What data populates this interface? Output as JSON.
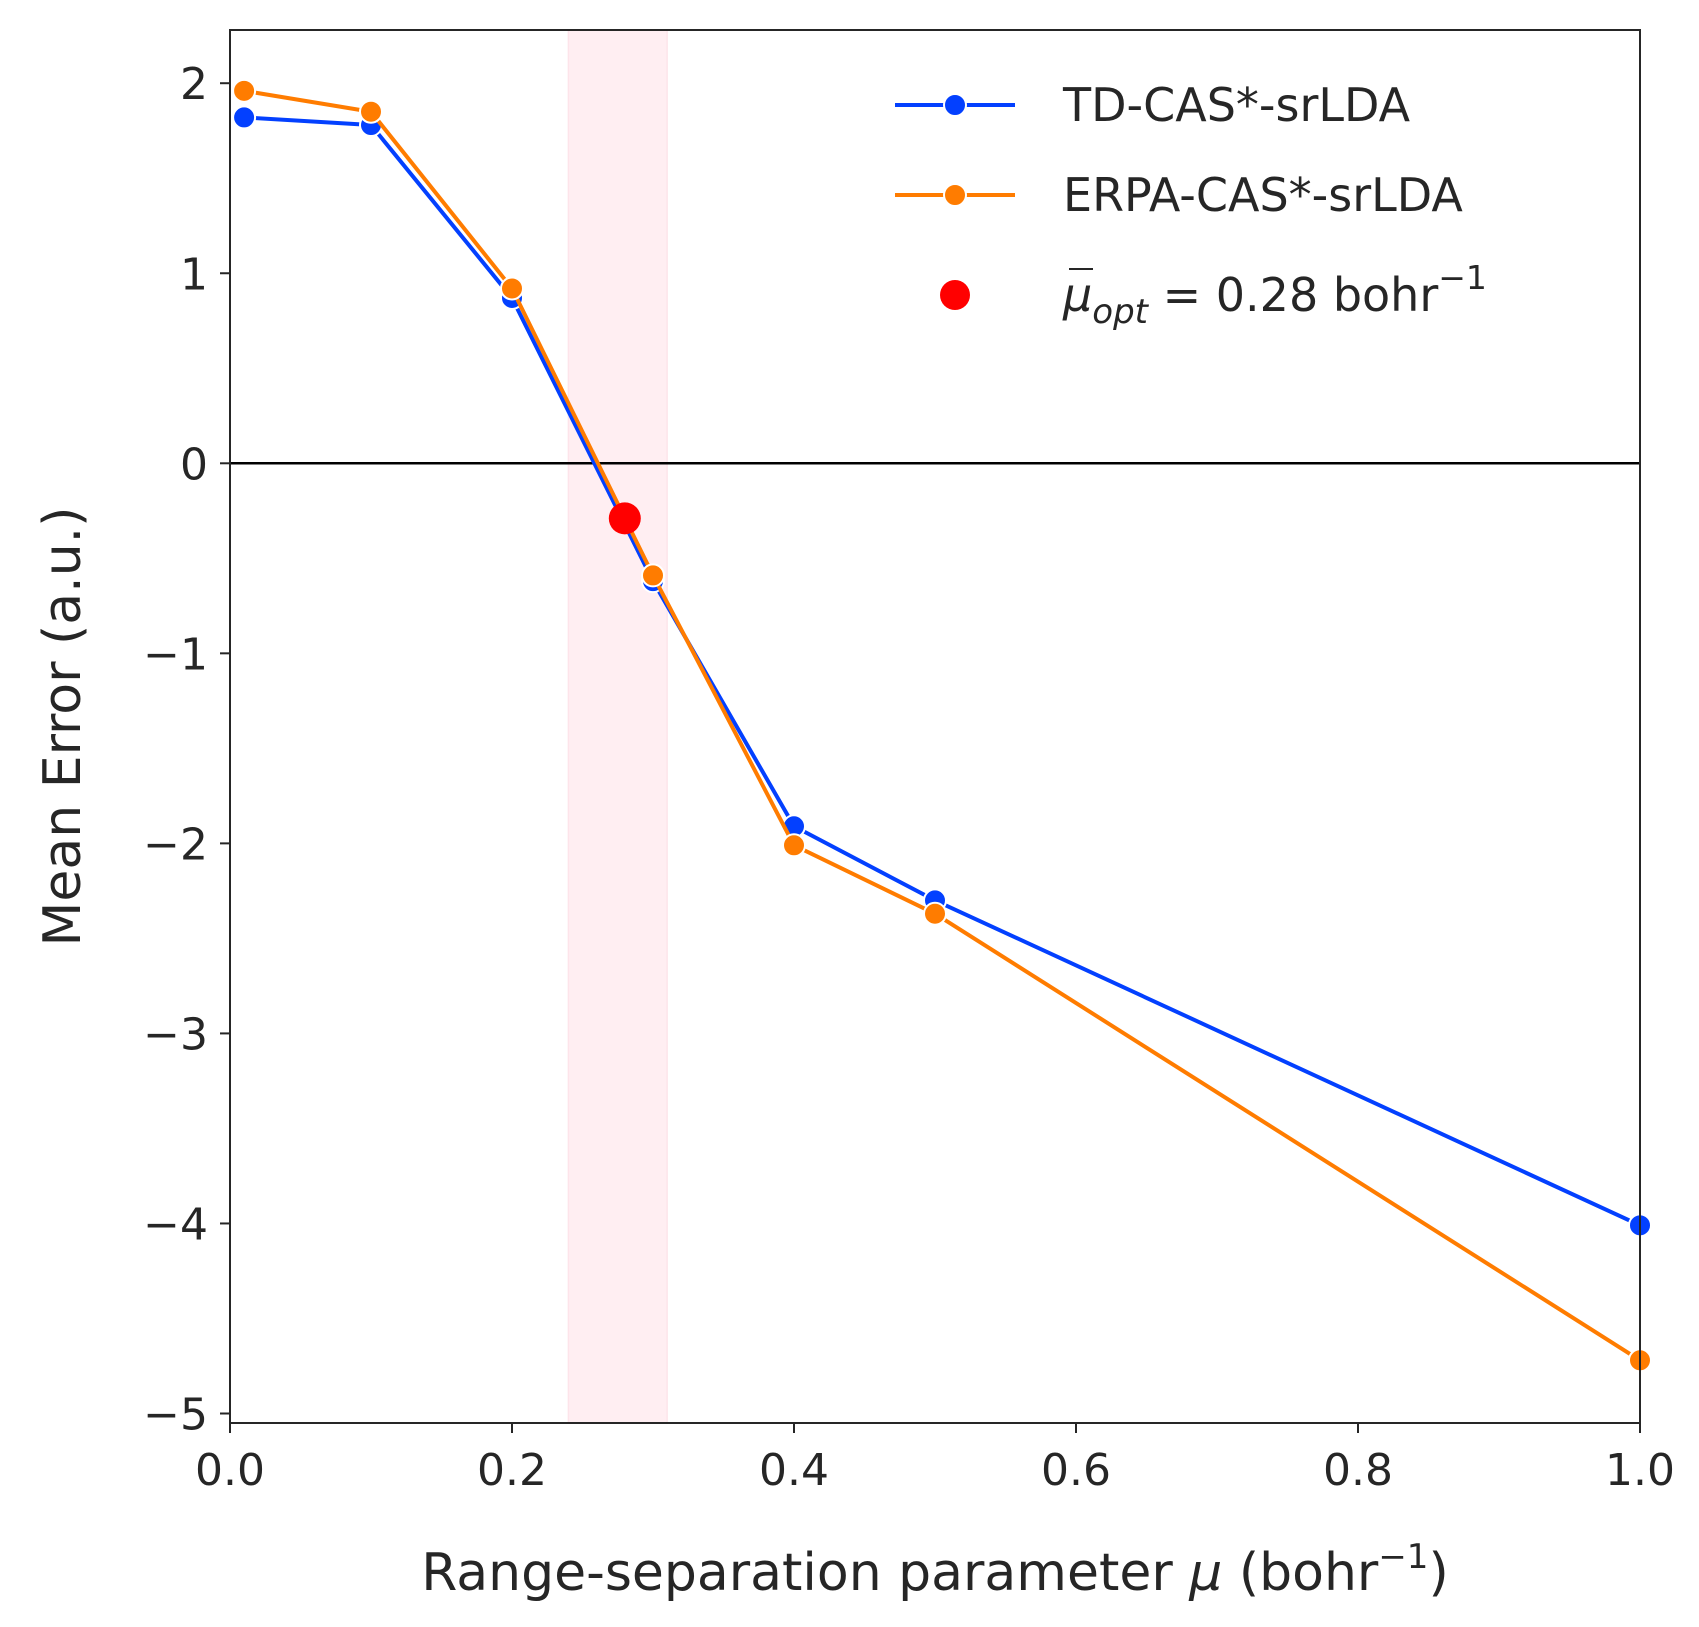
{
  "chart_data": {
    "type": "line",
    "xlabel_prefix": "Range-separation parameter ",
    "xlabel_symbol": "μ",
    "xlabel_unit_open": " (bohr",
    "xlabel_unit_exp": "−1",
    "xlabel_unit_close": ")",
    "ylabel": "Mean Error (a.u.)",
    "xlim": [
      0.0,
      1.0
    ],
    "ylim": [
      -5.05,
      2.28
    ],
    "xticks": [
      0.0,
      0.2,
      0.4,
      0.6,
      0.8,
      1.0
    ],
    "xtick_labels": [
      "0.0",
      "0.2",
      "0.4",
      "0.6",
      "0.8",
      "1.0"
    ],
    "yticks": [
      -5,
      -4,
      -3,
      -2,
      -1,
      0,
      1,
      2
    ],
    "ytick_labels": [
      "−5",
      "−4",
      "−3",
      "−2",
      "−1",
      "0",
      "1",
      "2"
    ],
    "series": [
      {
        "name": "TD-CAS*-srLDA",
        "color": "#0340ff",
        "x": [
          0.01,
          0.1,
          0.2,
          0.3,
          0.4,
          0.5,
          1.0
        ],
        "values": [
          1.82,
          1.78,
          0.87,
          -0.62,
          -1.91,
          -2.3,
          -4.01
        ]
      },
      {
        "name": "ERPA-CAS*-srLDA",
        "color": "#ff7c00",
        "x": [
          0.01,
          0.1,
          0.2,
          0.3,
          0.4,
          0.5,
          1.0
        ],
        "values": [
          1.96,
          1.85,
          0.92,
          -0.59,
          -2.01,
          -2.37,
          -4.72
        ]
      }
    ],
    "optimum": {
      "x": 0.28,
      "y": -0.29,
      "color": "#ff0000",
      "label_sym": "μ",
      "label_sub": "opt",
      "label_value": " = 0.28 bohr",
      "label_exp": "−1"
    },
    "shaded_band": {
      "x_start": 0.24,
      "x_end": 0.31,
      "color": "#ffeef2"
    },
    "reference_line_y": 0,
    "legend_position": "top-right",
    "grid": false
  }
}
